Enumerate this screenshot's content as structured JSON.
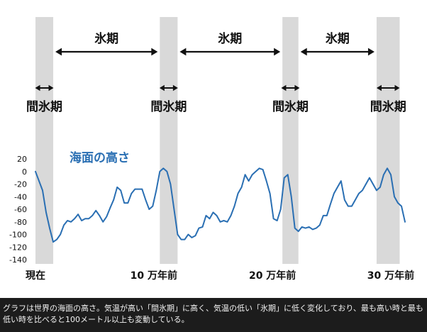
{
  "chart_data": {
    "type": "line",
    "series": [
      {
        "name": "海面の高さ",
        "color": "#2a6fb3",
        "points": [
          [
            0,
            0
          ],
          [
            1,
            -15
          ],
          [
            2,
            -30
          ],
          [
            3,
            -65
          ],
          [
            4,
            -90
          ],
          [
            5,
            -112
          ],
          [
            6,
            -108
          ],
          [
            7,
            -100
          ],
          [
            8,
            -85
          ],
          [
            9,
            -78
          ],
          [
            10,
            -80
          ],
          [
            11,
            -75
          ],
          [
            12,
            -68
          ],
          [
            13,
            -78
          ],
          [
            14,
            -75
          ],
          [
            15,
            -75
          ],
          [
            16,
            -70
          ],
          [
            17,
            -62
          ],
          [
            18,
            -70
          ],
          [
            19,
            -80
          ],
          [
            20,
            -72
          ],
          [
            21,
            -58
          ],
          [
            22,
            -45
          ],
          [
            23,
            -25
          ],
          [
            24,
            -30
          ],
          [
            25,
            -50
          ],
          [
            26,
            -50
          ],
          [
            27,
            -35
          ],
          [
            28,
            -28
          ],
          [
            29,
            -28
          ],
          [
            30,
            -28
          ],
          [
            31,
            -45
          ],
          [
            32,
            -60
          ],
          [
            33,
            -55
          ],
          [
            34,
            -30
          ],
          [
            35,
            0
          ],
          [
            36,
            5
          ],
          [
            37,
            0
          ],
          [
            38,
            -20
          ],
          [
            39,
            -60
          ],
          [
            40,
            -100
          ],
          [
            41,
            -108
          ],
          [
            42,
            -108
          ],
          [
            43,
            -100
          ],
          [
            44,
            -105
          ],
          [
            45,
            -102
          ],
          [
            46,
            -90
          ],
          [
            47,
            -88
          ],
          [
            48,
            -70
          ],
          [
            49,
            -75
          ],
          [
            50,
            -65
          ],
          [
            51,
            -70
          ],
          [
            52,
            -80
          ],
          [
            53,
            -78
          ],
          [
            54,
            -80
          ],
          [
            55,
            -70
          ],
          [
            56,
            -55
          ],
          [
            57,
            -35
          ],
          [
            58,
            -25
          ],
          [
            59,
            -5
          ],
          [
            60,
            -15
          ],
          [
            61,
            -5
          ],
          [
            62,
            0
          ],
          [
            63,
            5
          ],
          [
            64,
            3
          ],
          [
            65,
            -15
          ],
          [
            66,
            -35
          ],
          [
            67,
            -75
          ],
          [
            68,
            -78
          ],
          [
            69,
            -60
          ],
          [
            70,
            -10
          ],
          [
            71,
            -5
          ],
          [
            72,
            -40
          ],
          [
            73,
            -90
          ],
          [
            74,
            -95
          ],
          [
            75,
            -88
          ],
          [
            76,
            -90
          ],
          [
            77,
            -88
          ],
          [
            78,
            -92
          ],
          [
            79,
            -90
          ],
          [
            80,
            -85
          ],
          [
            81,
            -70
          ],
          [
            82,
            -70
          ],
          [
            83,
            -52
          ],
          [
            84,
            -35
          ],
          [
            85,
            -25
          ],
          [
            86,
            -15
          ],
          [
            87,
            -45
          ],
          [
            88,
            -55
          ],
          [
            89,
            -55
          ],
          [
            90,
            -45
          ],
          [
            91,
            -35
          ],
          [
            92,
            -30
          ],
          [
            93,
            -20
          ],
          [
            94,
            -10
          ],
          [
            95,
            -20
          ],
          [
            96,
            -30
          ],
          [
            97,
            -25
          ],
          [
            98,
            -5
          ],
          [
            99,
            5
          ],
          [
            100,
            -5
          ],
          [
            101,
            -40
          ],
          [
            102,
            -50
          ],
          [
            103,
            -55
          ],
          [
            104,
            -80
          ]
        ]
      }
    ],
    "series_label": "海面の高さ",
    "x_ticks": [
      {
        "x": 0,
        "label": "現在"
      },
      {
        "x": 33.3,
        "label": "10 万年前"
      },
      {
        "x": 66.7,
        "label": "20 万年前"
      },
      {
        "x": 100,
        "label": "30 万年前"
      }
    ],
    "xlim": [
      0,
      104
    ],
    "ylim": [
      -140,
      20
    ],
    "y_ticks": [
      20,
      0,
      -20,
      -40,
      -60,
      -80,
      -100,
      -120,
      -140
    ],
    "y_tick_labels": [
      "20",
      "0",
      "-20",
      "-40",
      "-60",
      "-80",
      "-100",
      "-120",
      "-140"
    ],
    "interglacial_bands": [
      [
        0,
        5
      ],
      [
        35,
        40
      ],
      [
        69.5,
        74
      ],
      [
        96,
        102.5
      ]
    ],
    "interglacial_label": "間氷期",
    "glacial_label": "氷期",
    "glacial_spans": [
      [
        5,
        35
      ],
      [
        40,
        69.5
      ],
      [
        74,
        96
      ]
    ],
    "grid": false
  },
  "caption": "グラフは世界の海面の高さ。気温が高い「間氷期」に高く、気温の低い「氷期」に低く変化しており、最も高い時と最も低い時を比べると100メートル以上も変動している。",
  "colors": {
    "band": "#d9d9d9",
    "line": "#2a6fb3",
    "text": "#111111",
    "caption_bg": "#1c1c1c"
  }
}
